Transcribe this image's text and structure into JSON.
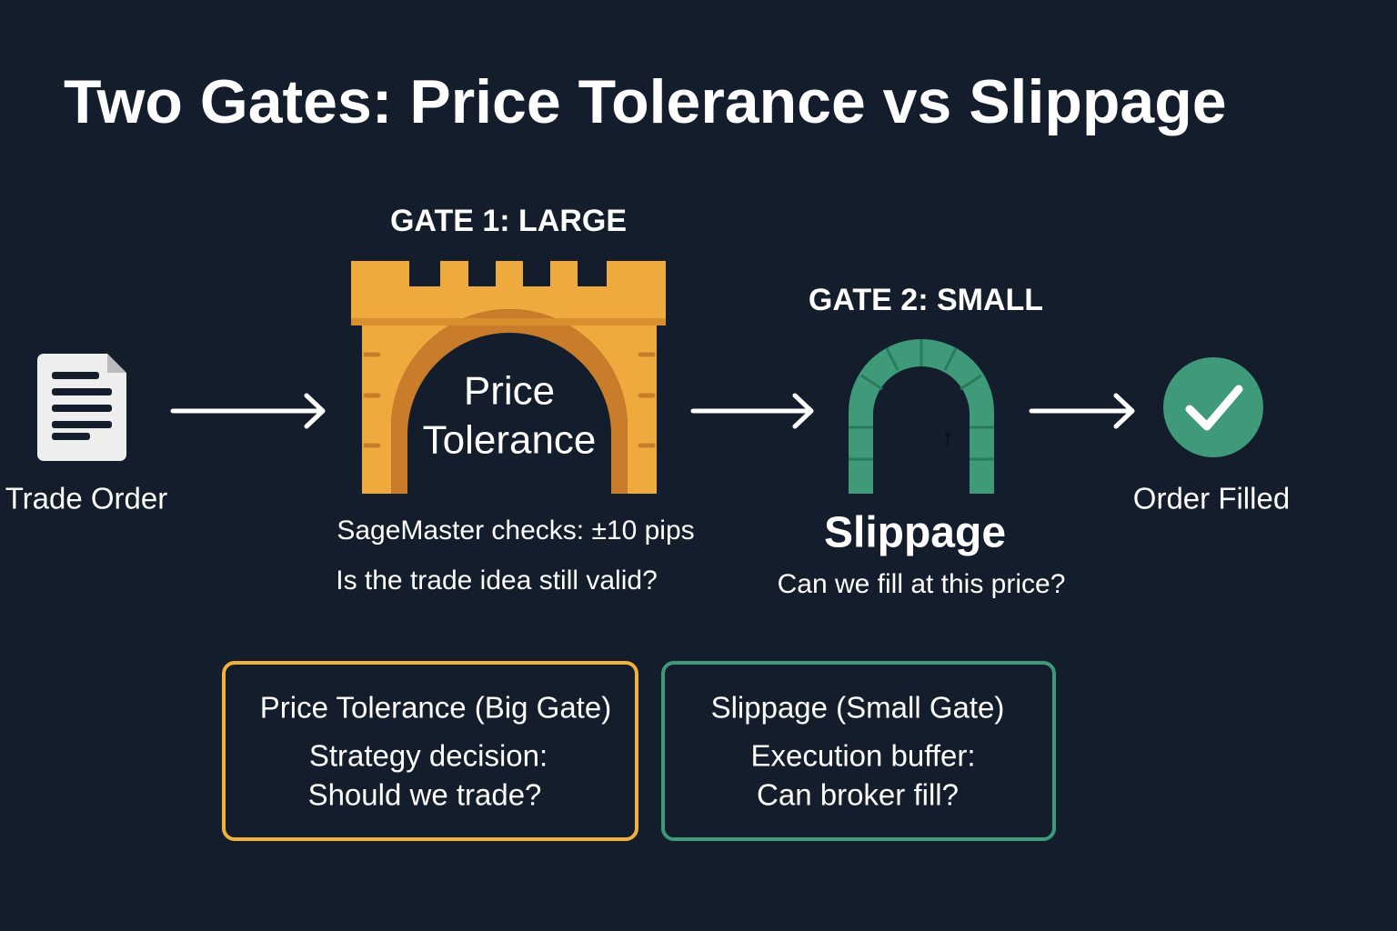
{
  "header": {
    "title": "Two Gates: Price Tolerance vs Slippage"
  },
  "nodes": [
    {
      "label": "Trade Order"
    },
    {
      "heading": "GATE 1: LARGE",
      "inner": [
        "Price",
        "Tolerance"
      ],
      "notes": [
        "SageMaster checks: ±10 pips",
        "Is the trade idea still valid?"
      ]
    },
    {
      "heading": "GATE 2: SMALL",
      "label": "Slippage",
      "note": "Can we fill at this price?"
    },
    {
      "label": "Order Filled"
    }
  ],
  "boxes": [
    {
      "title": "Price Tolerance (Big Gate)",
      "lines": [
        "Strategy decision:",
        "Should we trade?"
      ]
    },
    {
      "title": "Slippage (Small Gate)",
      "lines": [
        "Execution buffer:",
        "Can broker fill?"
      ]
    }
  ]
}
